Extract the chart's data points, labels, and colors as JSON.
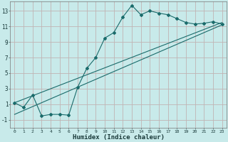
{
  "xlabel": "Humidex (Indice chaleur)",
  "bg_color": "#c8eaea",
  "grid_color": "#c0b4b4",
  "line_color": "#1a6b6b",
  "xlim": [
    -0.5,
    23.5
  ],
  "ylim": [
    -2.0,
    14.2
  ],
  "yticks": [
    -1,
    1,
    3,
    5,
    7,
    9,
    11,
    13
  ],
  "xticks": [
    0,
    1,
    2,
    3,
    4,
    5,
    6,
    7,
    8,
    9,
    10,
    11,
    12,
    13,
    14,
    15,
    16,
    17,
    18,
    19,
    20,
    21,
    22,
    23
  ],
  "line1_x": [
    0,
    1,
    2,
    3,
    4,
    5,
    6,
    7,
    8,
    9,
    10,
    11,
    12,
    13,
    14,
    15,
    16,
    17,
    18,
    19,
    20,
    21,
    22,
    23
  ],
  "line1_y": [
    1.2,
    0.6,
    2.2,
    -0.5,
    -0.3,
    -0.3,
    -0.4,
    3.2,
    5.6,
    7.0,
    9.5,
    10.2,
    12.2,
    13.7,
    12.5,
    13.0,
    12.7,
    12.5,
    12.0,
    11.5,
    11.3,
    11.4,
    11.6,
    11.3
  ],
  "line2_x": [
    0,
    23
  ],
  "line2_y": [
    1.2,
    11.5
  ],
  "line3_x": [
    0,
    23
  ],
  "line3_y": [
    -0.3,
    11.2
  ]
}
